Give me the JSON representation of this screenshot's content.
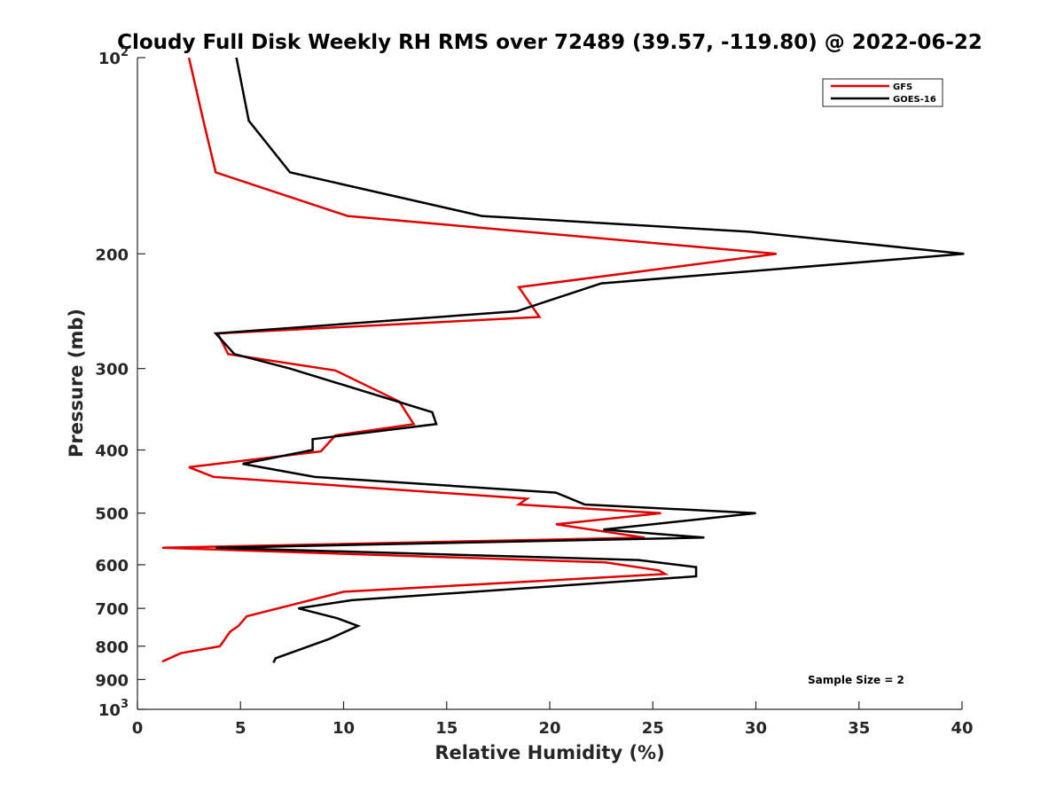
{
  "chart_data": {
    "type": "line",
    "title": "Cloudy Full Disk Weekly RH RMS over 72489 (39.57, -119.80) @ 2022-06-22",
    "xlabel": "Relative Humidity (%)",
    "ylabel": "Pressure (mb)",
    "xlim": [
      0,
      40
    ],
    "ylim": [
      100,
      1000
    ],
    "y_scale": "log",
    "y_reversed": true,
    "x_ticks": [
      "0",
      "5",
      "10",
      "15",
      "20",
      "25",
      "30",
      "35",
      "40"
    ],
    "y_ticks": [
      {
        "value": 100,
        "label": "10",
        "sup": "2"
      },
      {
        "value": 200,
        "label": "200",
        "sup": ""
      },
      {
        "value": 300,
        "label": "300",
        "sup": ""
      },
      {
        "value": 400,
        "label": "400",
        "sup": ""
      },
      {
        "value": 500,
        "label": "500",
        "sup": ""
      },
      {
        "value": 600,
        "label": "600",
        "sup": ""
      },
      {
        "value": 700,
        "label": "700",
        "sup": ""
      },
      {
        "value": 800,
        "label": "800",
        "sup": ""
      },
      {
        "value": 900,
        "label": "900",
        "sup": ""
      },
      {
        "value": 1000,
        "label": "10",
        "sup": "3"
      }
    ],
    "grid": false,
    "legend_position": "top-right",
    "series": [
      {
        "name": "GFS",
        "color": "#e00000",
        "points": [
          [
            2.5,
            100
          ],
          [
            3.2,
            125
          ],
          [
            3.8,
            150
          ],
          [
            10.2,
            175
          ],
          [
            31.0,
            200
          ],
          [
            18.5,
            225
          ],
          [
            19.5,
            250
          ],
          [
            3.9,
            265
          ],
          [
            4.4,
            285
          ],
          [
            9.6,
            302
          ],
          [
            12.7,
            337
          ],
          [
            13.4,
            365
          ],
          [
            9.6,
            380
          ],
          [
            8.9,
            402
          ],
          [
            2.5,
            425
          ],
          [
            3.7,
            440
          ],
          [
            18.9,
            475
          ],
          [
            18.5,
            485
          ],
          [
            25.4,
            500
          ],
          [
            20.3,
            520
          ],
          [
            24.6,
            545
          ],
          [
            1.2,
            565
          ],
          [
            22.7,
            595
          ],
          [
            25.3,
            612
          ],
          [
            25.6,
            620
          ],
          [
            10.0,
            660
          ],
          [
            5.3,
            720
          ],
          [
            4.9,
            745
          ],
          [
            4.5,
            760
          ],
          [
            4.0,
            800
          ],
          [
            2.1,
            820
          ],
          [
            1.2,
            845
          ]
        ]
      },
      {
        "name": "GOES-16",
        "color": "#000000",
        "points": [
          [
            4.8,
            100
          ],
          [
            5.4,
            125
          ],
          [
            7.4,
            150
          ],
          [
            16.7,
            175
          ],
          [
            29.7,
            185
          ],
          [
            40.1,
            200
          ],
          [
            22.5,
            222
          ],
          [
            18.4,
            245
          ],
          [
            3.8,
            265
          ],
          [
            4.7,
            285
          ],
          [
            7.4,
            300
          ],
          [
            14.3,
            350
          ],
          [
            14.5,
            365
          ],
          [
            8.5,
            385
          ],
          [
            8.5,
            400
          ],
          [
            5.1,
            420
          ],
          [
            8.6,
            440
          ],
          [
            20.3,
            465
          ],
          [
            21.7,
            485
          ],
          [
            30.0,
            500
          ],
          [
            22.6,
            530
          ],
          [
            27.5,
            545
          ],
          [
            3.8,
            565
          ],
          [
            24.3,
            590
          ],
          [
            27.1,
            605
          ],
          [
            27.1,
            625
          ],
          [
            10.4,
            680
          ],
          [
            7.8,
            700
          ],
          [
            9.7,
            725
          ],
          [
            10.7,
            745
          ],
          [
            9.3,
            780
          ],
          [
            6.7,
            835
          ],
          [
            6.6,
            848
          ]
        ]
      }
    ],
    "annotation": "Sample Size = 2"
  }
}
